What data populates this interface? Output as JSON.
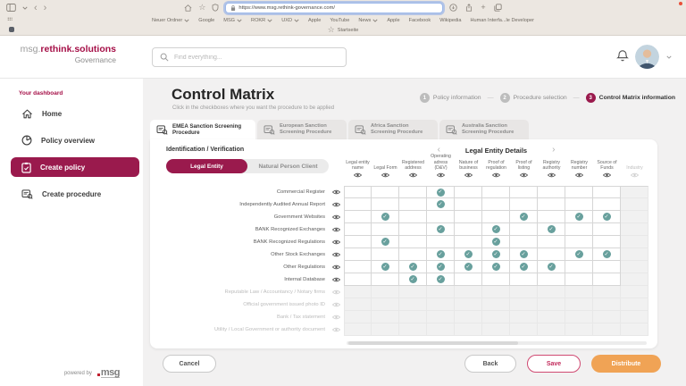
{
  "browser": {
    "url": "https://www.msg.rethink-governance.com/",
    "bookmarks": [
      {
        "label": "Neuer Ordner",
        "menu": true
      },
      {
        "label": "Google",
        "menu": false
      },
      {
        "label": "MSG",
        "menu": true
      },
      {
        "label": "ROKR",
        "menu": true
      },
      {
        "label": "UXD",
        "menu": true
      },
      {
        "label": "Apple",
        "menu": false
      },
      {
        "label": "YouTube",
        "menu": false
      },
      {
        "label": "News",
        "menu": true
      },
      {
        "label": "Apple",
        "menu": false
      },
      {
        "label": "Facebook",
        "menu": false
      },
      {
        "label": "Wikipedia",
        "menu": false
      },
      {
        "label": "Human Interfa...le Developer",
        "menu": false
      }
    ],
    "startpage_label": "Startseite"
  },
  "header": {
    "search_placeholder": "Find everything..."
  },
  "sidebar": {
    "logo_prefix": "msg.",
    "logo_main": "rethink.solutions",
    "logo_sub": "Governance",
    "section_label": "Your dashboard",
    "items": [
      {
        "label": "Home",
        "icon": "home",
        "active": false
      },
      {
        "label": "Policy overview",
        "icon": "pie",
        "active": false
      },
      {
        "label": "Create policy",
        "icon": "clipboard",
        "active": true
      },
      {
        "label": "Create procedure",
        "icon": "procedure",
        "active": false
      }
    ],
    "powered_by": "powered by",
    "powered_logo": "msg"
  },
  "page": {
    "title": "Control Matrix",
    "subtitle": "Click in the checkboxes where you want the procedure to be applied",
    "steps": [
      {
        "num": "1",
        "label": "Policy information",
        "active": false
      },
      {
        "num": "2",
        "label": "Procedure selection",
        "active": false
      },
      {
        "num": "3",
        "label": "Control Matrix information",
        "active": true
      }
    ],
    "tabs": [
      {
        "label": "EMEA Sanction Screening Procedure",
        "active": true
      },
      {
        "label": "European Sanction Screening Procedure",
        "active": false
      },
      {
        "label": "Africa Sanction Screening Procedure",
        "active": false
      },
      {
        "label": "Australia Sanction Screening Procedure",
        "active": false
      }
    ]
  },
  "matrix": {
    "section_title": "Identification / Verification",
    "toggle": [
      {
        "label": "Legal Entity",
        "active": true
      },
      {
        "label": "Natural Person Client",
        "active": false
      }
    ],
    "carousel_title": "Legal Entity Details",
    "columns": [
      {
        "label": "Legal entity name",
        "enabled": true
      },
      {
        "label": "Legal Form",
        "enabled": true
      },
      {
        "label": "Registered address",
        "enabled": true
      },
      {
        "label": "Operating adress (D&V)",
        "enabled": true
      },
      {
        "label": "Nature of business",
        "enabled": true
      },
      {
        "label": "Proof of regulation",
        "enabled": true
      },
      {
        "label": "Proof of listing",
        "enabled": true
      },
      {
        "label": "Registry authority",
        "enabled": true
      },
      {
        "label": "Registry number",
        "enabled": true
      },
      {
        "label": "Source of Funds",
        "enabled": true
      },
      {
        "label": "Industry",
        "enabled": false
      }
    ],
    "rows": [
      {
        "label": "Commercial Register",
        "enabled": true,
        "checked": [
          4
        ]
      },
      {
        "label": "Independently Audited Annual Report",
        "enabled": true,
        "checked": [
          4
        ]
      },
      {
        "label": "Government Websites",
        "enabled": true,
        "checked": [
          2,
          7,
          9,
          10
        ]
      },
      {
        "label": "BANK Recognized Exchanges",
        "enabled": true,
        "checked": [
          4,
          6,
          8
        ]
      },
      {
        "label": "BANK Recognized Regulations",
        "enabled": true,
        "checked": [
          2,
          6
        ]
      },
      {
        "label": "Other Stock Exchanges",
        "enabled": true,
        "checked": [
          4,
          5,
          6,
          7,
          9,
          10
        ]
      },
      {
        "label": "Other Regulations",
        "enabled": true,
        "checked": [
          2,
          3,
          4,
          5,
          6,
          7,
          8
        ]
      },
      {
        "label": "Internal Database",
        "enabled": true,
        "checked": [
          3,
          4
        ]
      },
      {
        "label": "Reputable Law / Accountancy / Notary firms",
        "enabled": false,
        "checked": []
      },
      {
        "label": "Official government issued photo ID",
        "enabled": false,
        "checked": []
      },
      {
        "label": "Bank / Tax statement",
        "enabled": false,
        "checked": []
      },
      {
        "label": "Utility / Local Government or authority document",
        "enabled": false,
        "checked": []
      }
    ]
  },
  "footer": {
    "cancel": "Cancel",
    "back": "Back",
    "save": "Save",
    "distribute": "Distribute"
  },
  "colors": {
    "accent_maroon": "#9a1a4d",
    "logo_red": "#a50f47",
    "check_teal": "#68a09d",
    "distribute_orange": "#f0a355",
    "save_pink": "#c22a5b",
    "chrome_beige": "#ece7e1",
    "page_bg": "#f2f1f1"
  }
}
